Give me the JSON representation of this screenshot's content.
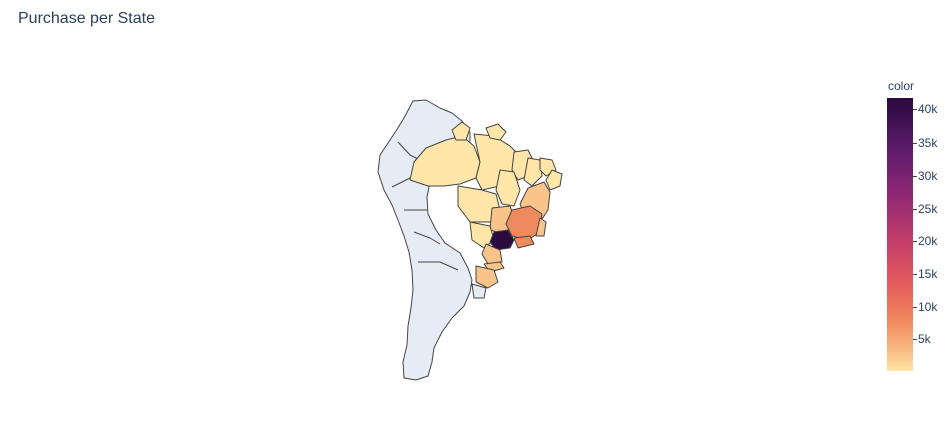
{
  "title": "Purchase per State",
  "colorbar": {
    "title": "color",
    "ticks": [
      "40k",
      "35k",
      "30k",
      "25k",
      "20k",
      "15k",
      "10k",
      "5k"
    ],
    "scale_max": 41000,
    "scale_min": 0
  },
  "colors": {
    "land_default": "#e5ecf6",
    "border": "#444444",
    "title_text": "#2a3f5f"
  }
}
